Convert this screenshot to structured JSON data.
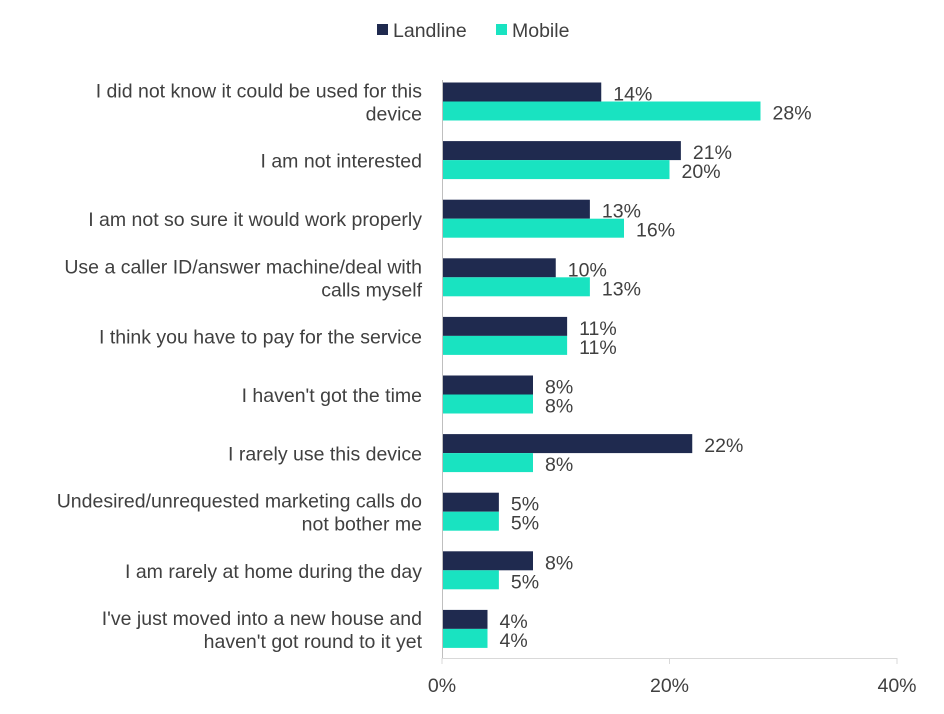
{
  "chart_data": {
    "type": "bar",
    "orientation": "horizontal",
    "categories": [
      [
        "I did not know it could be used for this",
        "device"
      ],
      [
        "I am not interested"
      ],
      [
        "I am not so sure it would work properly"
      ],
      [
        "Use a caller ID/answer machine/deal with",
        "calls myself"
      ],
      [
        "I think you have to pay for the service"
      ],
      [
        "I haven't got the time"
      ],
      [
        "I rarely use this device"
      ],
      [
        "Undesired/unrequested marketing calls do",
        "not bother me"
      ],
      [
        "I am rarely at home during the day"
      ],
      [
        "I've just moved into a new house and",
        "haven't got round to it yet"
      ]
    ],
    "series": [
      {
        "name": "Landline",
        "color": "#1f2a4f",
        "values": [
          14,
          21,
          13,
          10,
          11,
          8,
          22,
          5,
          8,
          4
        ],
        "labels": [
          "14%",
          "21%",
          "13%",
          "10%",
          "11%",
          "8%",
          "22%",
          "5%",
          "8%",
          "4%"
        ]
      },
      {
        "name": "Mobile",
        "color": "#19e3c1",
        "values": [
          28,
          20,
          16,
          13,
          11,
          8,
          8,
          5,
          5,
          4
        ],
        "labels": [
          "28%",
          "20%",
          "16%",
          "13%",
          "11%",
          "8%",
          "8%",
          "5%",
          "5%",
          "4%"
        ]
      }
    ],
    "xlim": [
      0,
      40
    ],
    "xticks": [
      0,
      20,
      40
    ],
    "xtick_labels": [
      "0%",
      "20%",
      "40%"
    ],
    "legend_position": "top-center",
    "grid": false,
    "title": "",
    "xlabel": "",
    "ylabel": ""
  }
}
